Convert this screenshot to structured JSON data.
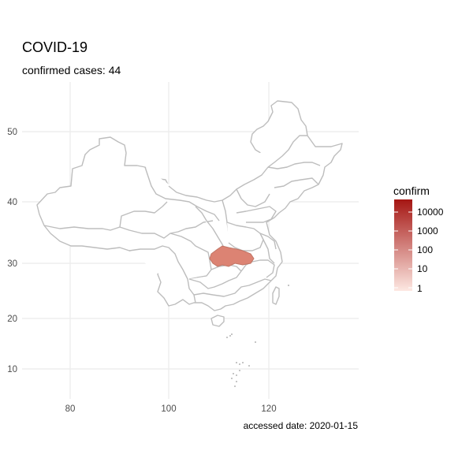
{
  "title": "COVID-19",
  "subtitle": "confirmed cases: 44",
  "caption": "accessed date: 2020-01-15",
  "map": {
    "x_ticks": [
      "80",
      "100",
      "120"
    ],
    "y_ticks": [
      "50",
      "40",
      "30",
      "20",
      "10"
    ],
    "region_outline_color": "#bdbdbd",
    "highlighted_region": {
      "name": "Hubei",
      "color": "#dc8373"
    }
  },
  "legend": {
    "title": "confirm",
    "labels": [
      "10000",
      "1000",
      "100",
      "10",
      "1"
    ],
    "color_low": "#fde8e2",
    "color_high": "#a51613",
    "scale": "log"
  }
}
